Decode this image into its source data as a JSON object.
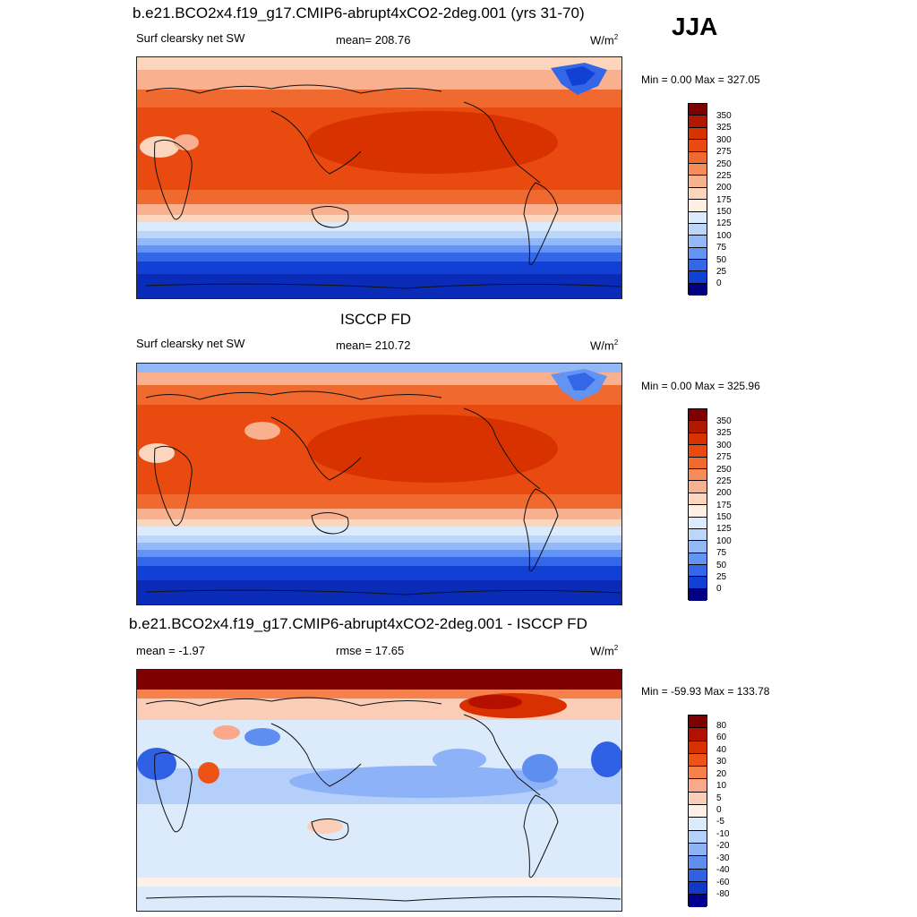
{
  "season": "JJA",
  "panels": [
    {
      "title": "b.e21.BCO2x4.f19_g17.CMIP6-abrupt4xCO2-2deg.001 (yrs 31-70)",
      "left_label": "Surf clearsky net SW",
      "center_label": "mean= 208.76",
      "units": "W/m",
      "units_sup": "2",
      "minmax": "Min =   0.00 Max = 327.05",
      "type": "absolute",
      "colorbar_labels": [
        "350",
        "325",
        "300",
        "275",
        "250",
        "225",
        "200",
        "175",
        "150",
        "125",
        "100",
        "75",
        "50",
        "25",
        "0"
      ]
    },
    {
      "title": "ISCCP FD",
      "left_label": "Surf clearsky net SW",
      "center_label": "mean= 210.72",
      "units": "W/m",
      "units_sup": "2",
      "minmax": "Min =   0.00 Max = 325.96",
      "type": "absolute",
      "colorbar_labels": [
        "350",
        "325",
        "300",
        "275",
        "250",
        "225",
        "200",
        "175",
        "150",
        "125",
        "100",
        "75",
        "50",
        "25",
        "0"
      ]
    },
    {
      "title": "b.e21.BCO2x4.f19_g17.CMIP6-abrupt4xCO2-2deg.001 - ISCCP FD",
      "left_label": "mean =  -1.97",
      "center_label": "rmse =  17.65",
      "units": "W/m",
      "units_sup": "2",
      "minmax": "Min = -59.93 Max = 133.78",
      "type": "difference",
      "colorbar_labels": [
        "80",
        "60",
        "40",
        "30",
        "20",
        "10",
        "5",
        "0",
        "-5",
        "-10",
        "-20",
        "-30",
        "-40",
        "-60",
        "-80"
      ]
    }
  ],
  "colors": {
    "absolute_scale": [
      "#7f0000",
      "#b01800",
      "#d83200",
      "#e84a10",
      "#f06a30",
      "#f58c5a",
      "#f9b08e",
      "#fcd6bc",
      "#fdf0e2",
      "#dcebfb",
      "#bcd6fa",
      "#93b8f8",
      "#6494f3",
      "#3367e8",
      "#1240d4",
      "#0a2ab8",
      "#000080"
    ],
    "difference_scale": [
      "#7f0000",
      "#b31000",
      "#d83000",
      "#ee5316",
      "#f6814d",
      "#f9a98a",
      "#fccdb6",
      "#fdf0e6",
      "#dcebfb",
      "#b4cffa",
      "#8eb2f7",
      "#5f8ef1",
      "#3060e4",
      "#1238c8",
      "#000090"
    ]
  }
}
